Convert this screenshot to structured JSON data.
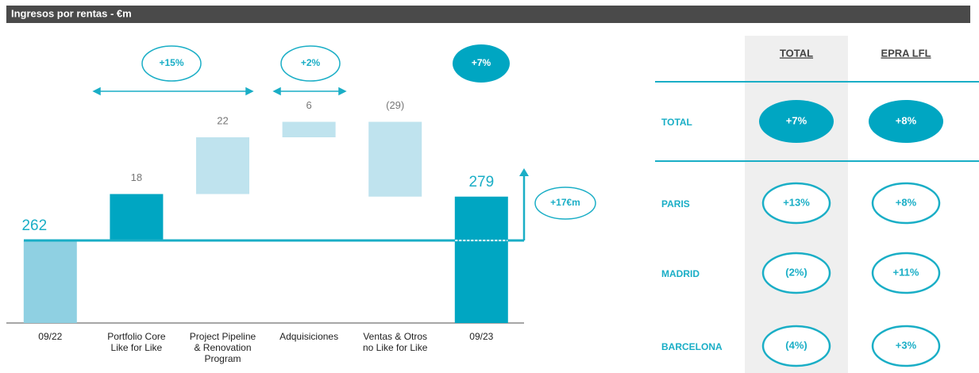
{
  "header": {
    "title": "Ingresos por rentas - €m"
  },
  "chart_data": {
    "type": "waterfall",
    "categories": [
      "09/22",
      "Portfolio Core\nLike for Like",
      "Project Pipeline\n& Renovation\nProgram",
      "Adquisiciones",
      "Ventas & Otros\nno Like for Like",
      "09/23"
    ],
    "values": [
      262,
      18,
      22,
      6,
      -29,
      279
    ],
    "value_labels": [
      "262",
      "18",
      "22",
      "6",
      "(29)",
      "279"
    ],
    "measure": [
      "absolute",
      "relative",
      "relative",
      "relative",
      "relative",
      "total"
    ],
    "colors": [
      "#8fd0e2",
      "#00a6c2",
      "#bfe3ee",
      "#bfe3ee",
      "#bfe3ee",
      "#00a6c2"
    ],
    "ylim": [
      230,
      320
    ],
    "annotations": [
      "+15%",
      "+2%",
      "+7%",
      "+17€m"
    ]
  },
  "table": {
    "columns": [
      "TOTAL",
      "EPRA LFL"
    ],
    "rows": [
      [
        "TOTAL",
        "+7%",
        "+8%"
      ],
      [
        "PARIS",
        "+13%",
        "+8%"
      ],
      [
        "MADRID",
        "(2%)",
        "+11%"
      ],
      [
        "BARCELONA",
        "(4%)",
        "+3%"
      ]
    ]
  }
}
